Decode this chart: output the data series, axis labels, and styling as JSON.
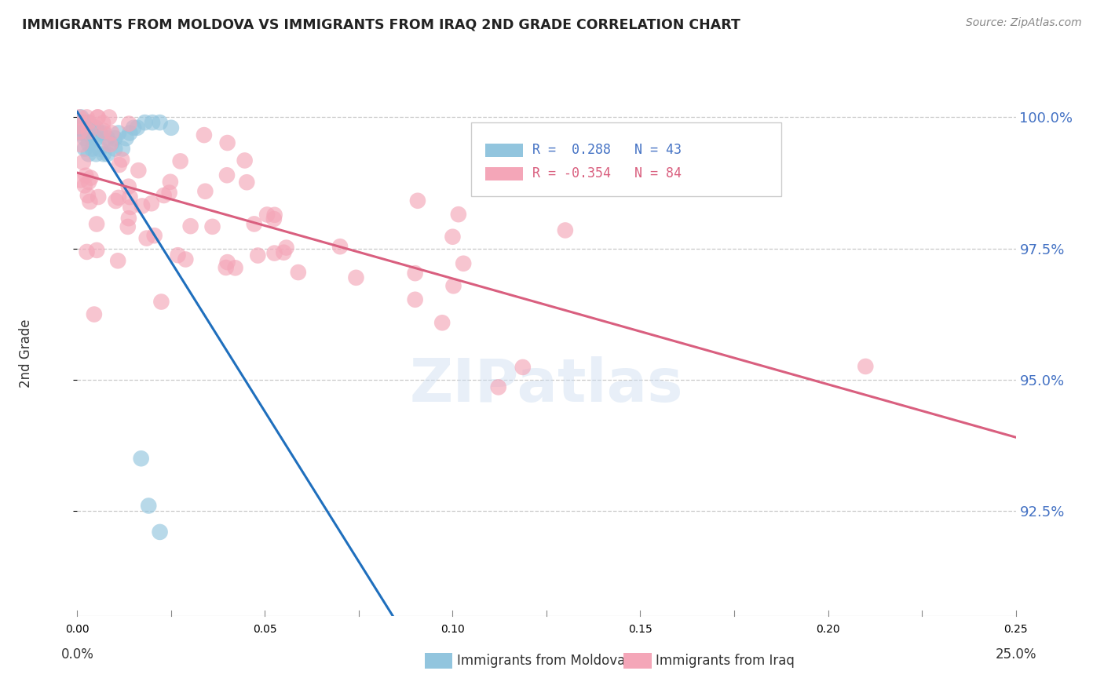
{
  "title": "IMMIGRANTS FROM MOLDOVA VS IMMIGRANTS FROM IRAQ 2ND GRADE CORRELATION CHART",
  "source": "Source: ZipAtlas.com",
  "ylabel": "2nd Grade",
  "ytick_labels": [
    "100.0%",
    "97.5%",
    "95.0%",
    "92.5%"
  ],
  "ytick_values": [
    1.0,
    0.975,
    0.95,
    0.925
  ],
  "legend_label1": "Immigrants from Moldova",
  "legend_label2": "Immigrants from Iraq",
  "r1": 0.288,
  "n1": 43,
  "r2": -0.354,
  "n2": 84,
  "color_blue": "#92c5de",
  "color_pink": "#f4a6b8",
  "color_blue_line": "#1f6fbd",
  "color_pink_line": "#d95f7f",
  "xlim": [
    0.0,
    0.25
  ],
  "ylim": [
    0.905,
    1.005
  ]
}
